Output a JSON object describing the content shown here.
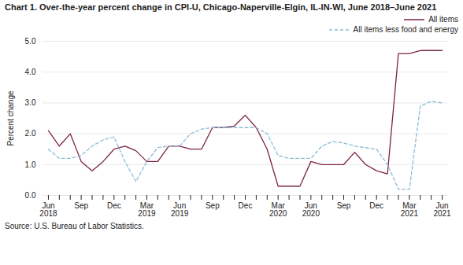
{
  "chart_data": {
    "type": "line",
    "title": "Chart 1. Over-the-year percent change in CPI-U, Chicago-Naperville-Elgin, IL-IN-WI, June 2018–June 2021",
    "ylabel": "Percent change",
    "source": "Source: U.S. Bureau of Labor Statistics.",
    "categories": [
      "Jun\n2018",
      null,
      null,
      "Sep",
      null,
      null,
      "Dec",
      null,
      null,
      "Mar\n2019",
      null,
      null,
      "Jun\n2019",
      null,
      null,
      "Sep",
      null,
      null,
      "Dec",
      null,
      null,
      "Mar\n2020",
      null,
      null,
      "Jun\n2020",
      null,
      null,
      "Sep",
      null,
      null,
      "Dec",
      null,
      null,
      "Mar\n2021",
      null,
      null,
      "Jun\n2021"
    ],
    "series": [
      {
        "name": "All items",
        "color": "#7b2346",
        "line_style": "solid",
        "values": [
          2.1,
          1.6,
          2.0,
          1.1,
          0.8,
          1.1,
          1.5,
          1.6,
          1.45,
          1.1,
          1.1,
          1.6,
          1.6,
          1.5,
          1.5,
          2.2,
          2.2,
          2.25,
          2.6,
          2.2,
          1.5,
          0.3,
          0.3,
          0.3,
          1.1,
          1.0,
          1.0,
          1.0,
          1.4,
          1.0,
          0.8,
          0.7,
          4.6,
          4.6,
          4.7,
          4.7,
          4.7
        ]
      },
      {
        "name": "All items less food and energy",
        "color": "#8bbcd6",
        "line_style": "dashed",
        "values": [
          1.5,
          1.2,
          1.2,
          1.3,
          1.6,
          1.8,
          1.9,
          1.1,
          0.45,
          1.1,
          1.55,
          1.6,
          1.6,
          2.0,
          2.15,
          2.2,
          2.2,
          2.2,
          2.2,
          2.2,
          2.0,
          1.3,
          1.2,
          1.2,
          1.2,
          1.6,
          1.75,
          1.7,
          1.6,
          1.55,
          1.5,
          1.0,
          0.2,
          0.2,
          2.9,
          3.05,
          3.0
        ]
      }
    ],
    "ylim": [
      0.0,
      5.0
    ],
    "yticks": [
      {
        "value": 0.0,
        "label": "0.0"
      },
      {
        "value": 1.0,
        "label": "1.0"
      },
      {
        "value": 2.0,
        "label": "2.0"
      },
      {
        "value": 3.0,
        "label": "3.0"
      },
      {
        "value": 4.0,
        "label": "4.0"
      },
      {
        "value": 5.0,
        "label": "5.0"
      }
    ],
    "grid": true,
    "legend": "upper right"
  }
}
